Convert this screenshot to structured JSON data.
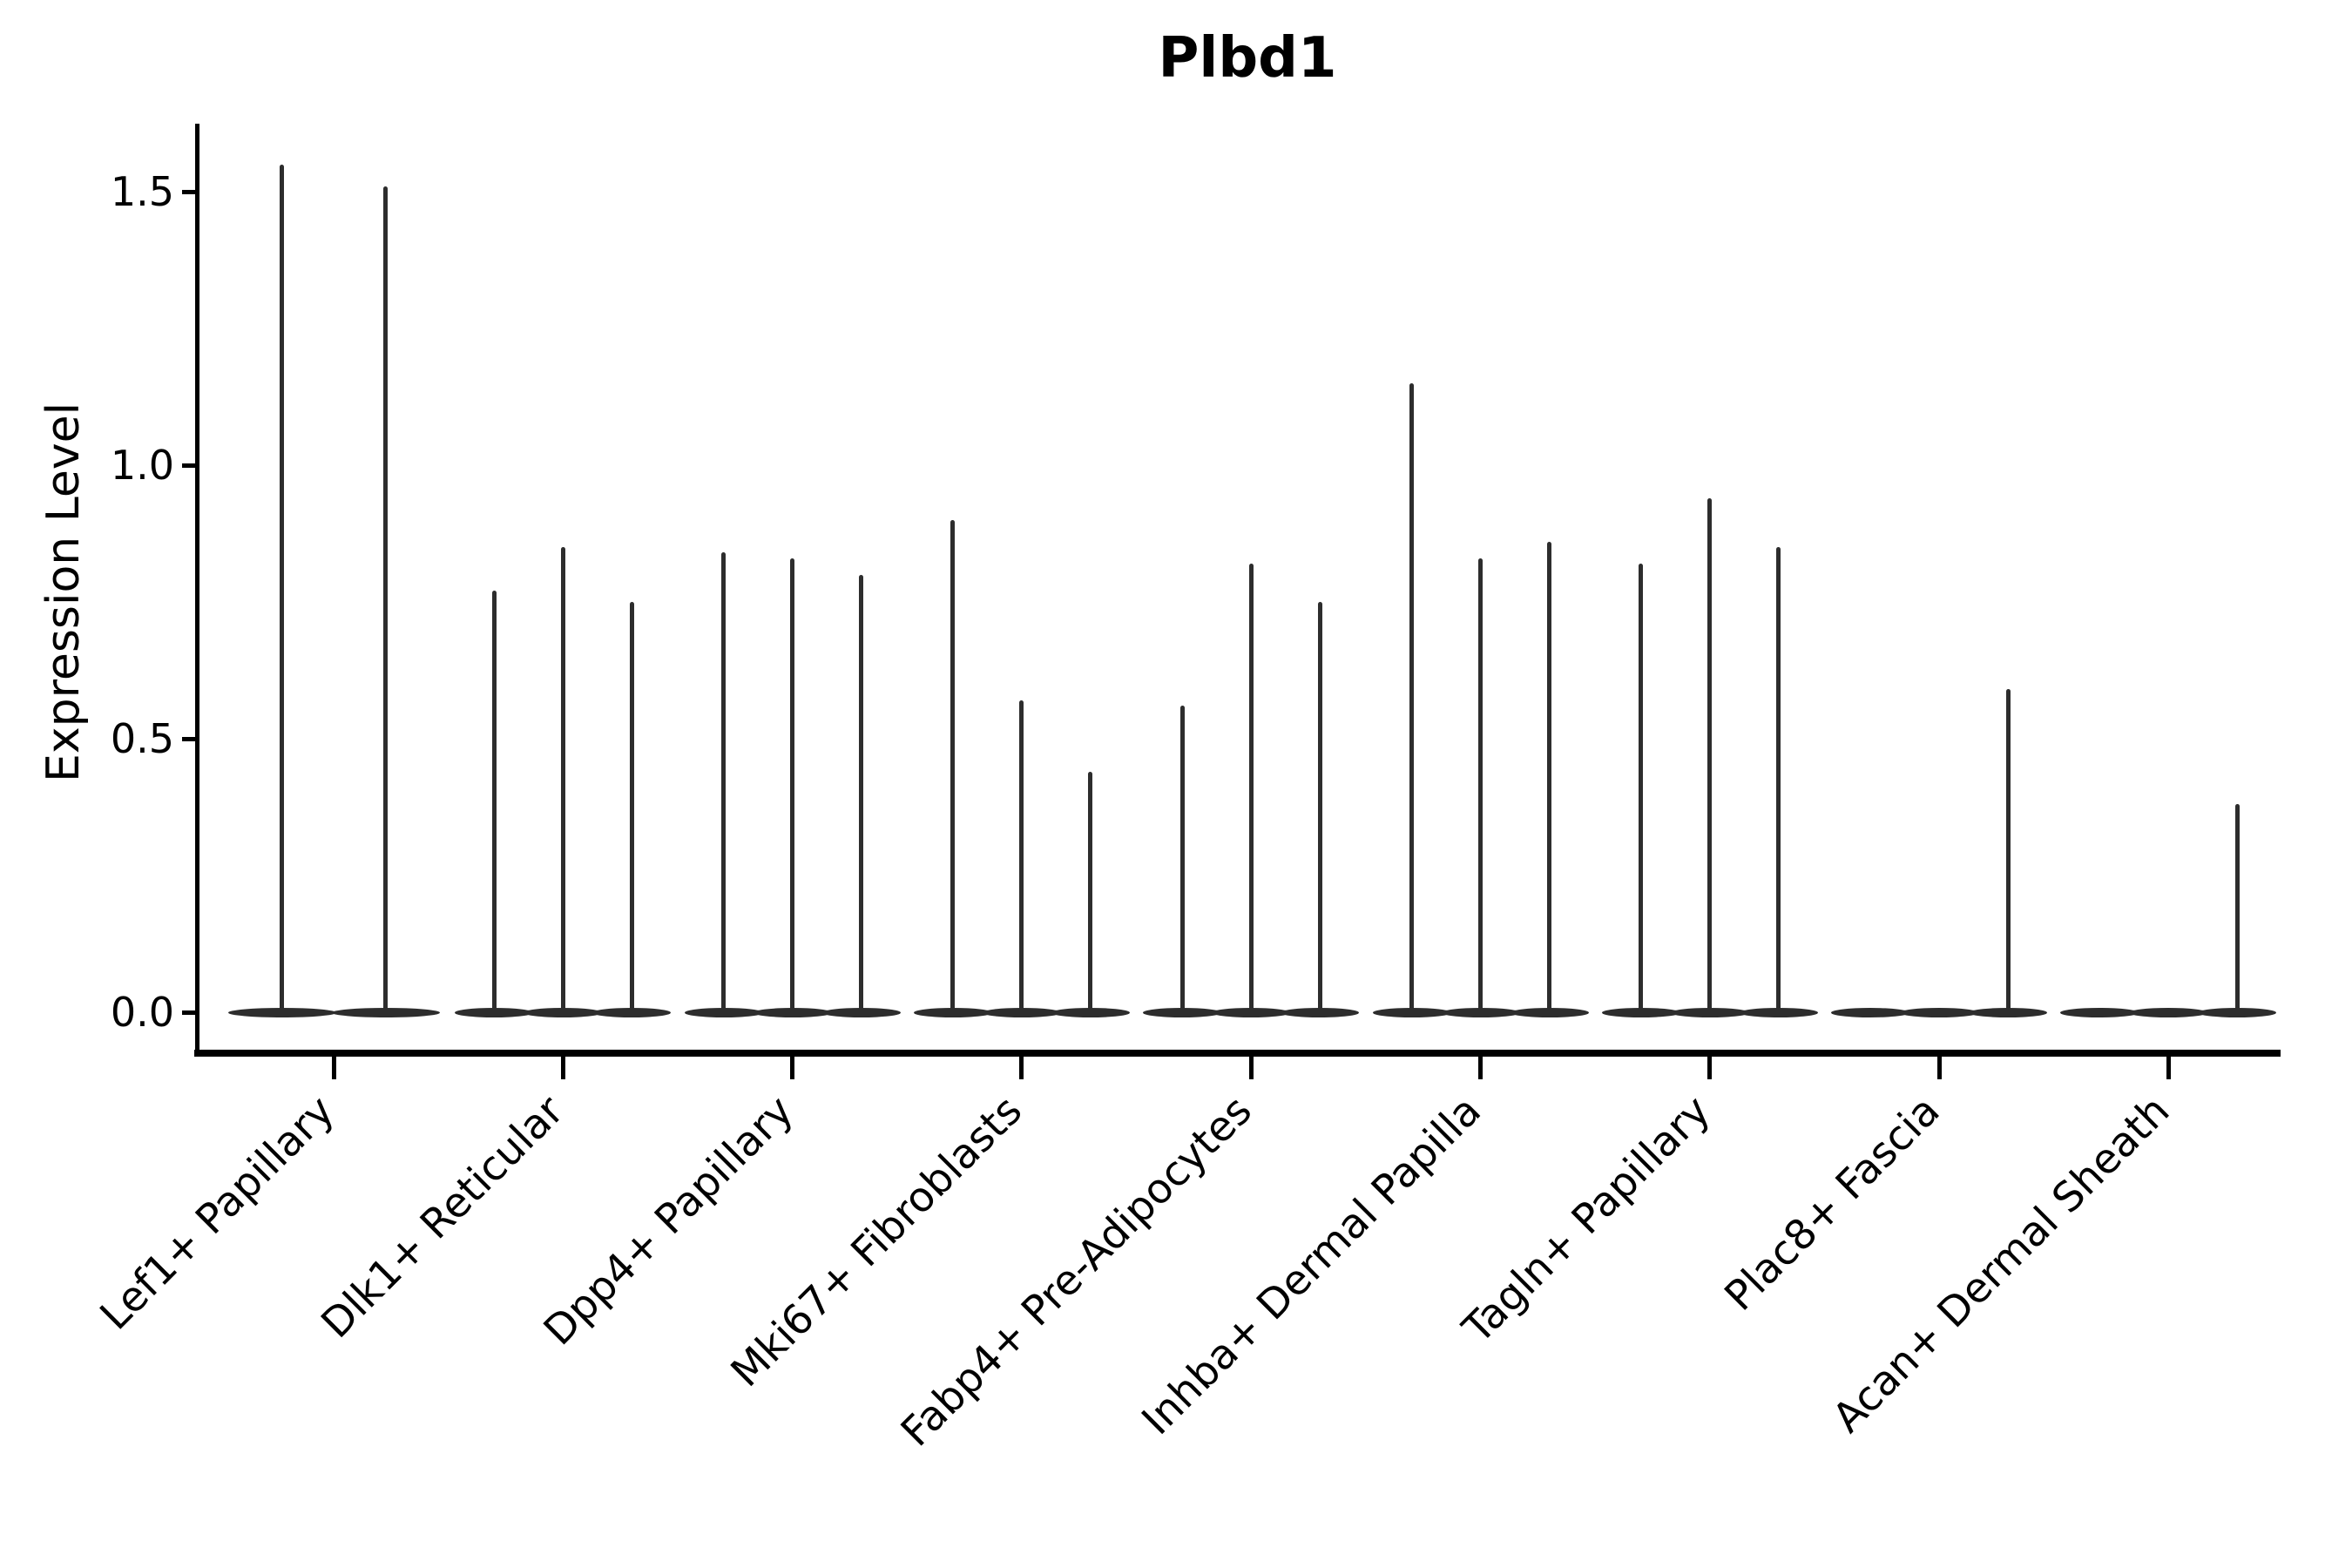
{
  "chart_data": {
    "type": "violin",
    "title": "Plbd1",
    "ylabel": "Expression Level",
    "xlabel": "",
    "y_tick_labels": [
      "0.0",
      "0.5",
      "1.0",
      "1.5"
    ],
    "y_tick_values": [
      0.0,
      0.5,
      1.0,
      1.5
    ],
    "ylim": [
      0,
      1.62
    ],
    "grid": "off",
    "legend": "none",
    "background_color": "#ffffff",
    "violin_color": "#2d2d2d",
    "axis_color": "#000000",
    "description": "Needle-thin violins: nearly all cells at expression 0 (flat body on baseline) with a narrow spike up to the max expression per violin; 2-3 violins per category",
    "categories": [
      {
        "label": "Lef1+ Papillary",
        "violin_maxima": [
          1.55,
          1.51
        ]
      },
      {
        "label": "Dlk1+ Reticular",
        "violin_maxima": [
          0.77,
          0.85,
          0.75
        ]
      },
      {
        "label": "Dpp4+ Papillary",
        "violin_maxima": [
          0.84,
          0.83,
          0.8
        ]
      },
      {
        "label": "Mki67+ Fibroblasts",
        "violin_maxima": [
          0.9,
          0.57,
          0.44
        ]
      },
      {
        "label": "Fabp4+ Pre-Adipocytes",
        "violin_maxima": [
          0.56,
          0.82,
          0.75
        ]
      },
      {
        "label": "Inhba+ Dermal Papilla",
        "violin_maxima": [
          1.15,
          0.83,
          0.86
        ]
      },
      {
        "label": "Tagln+ Papillary",
        "violin_maxima": [
          0.82,
          0.94,
          0.85
        ]
      },
      {
        "label": "Plac8+ Fascia",
        "violin_maxima": [
          0,
          0,
          0.59
        ]
      },
      {
        "label": "Acan+ Dermal Sheath",
        "violin_maxima": [
          0,
          0,
          0.38
        ]
      }
    ]
  }
}
